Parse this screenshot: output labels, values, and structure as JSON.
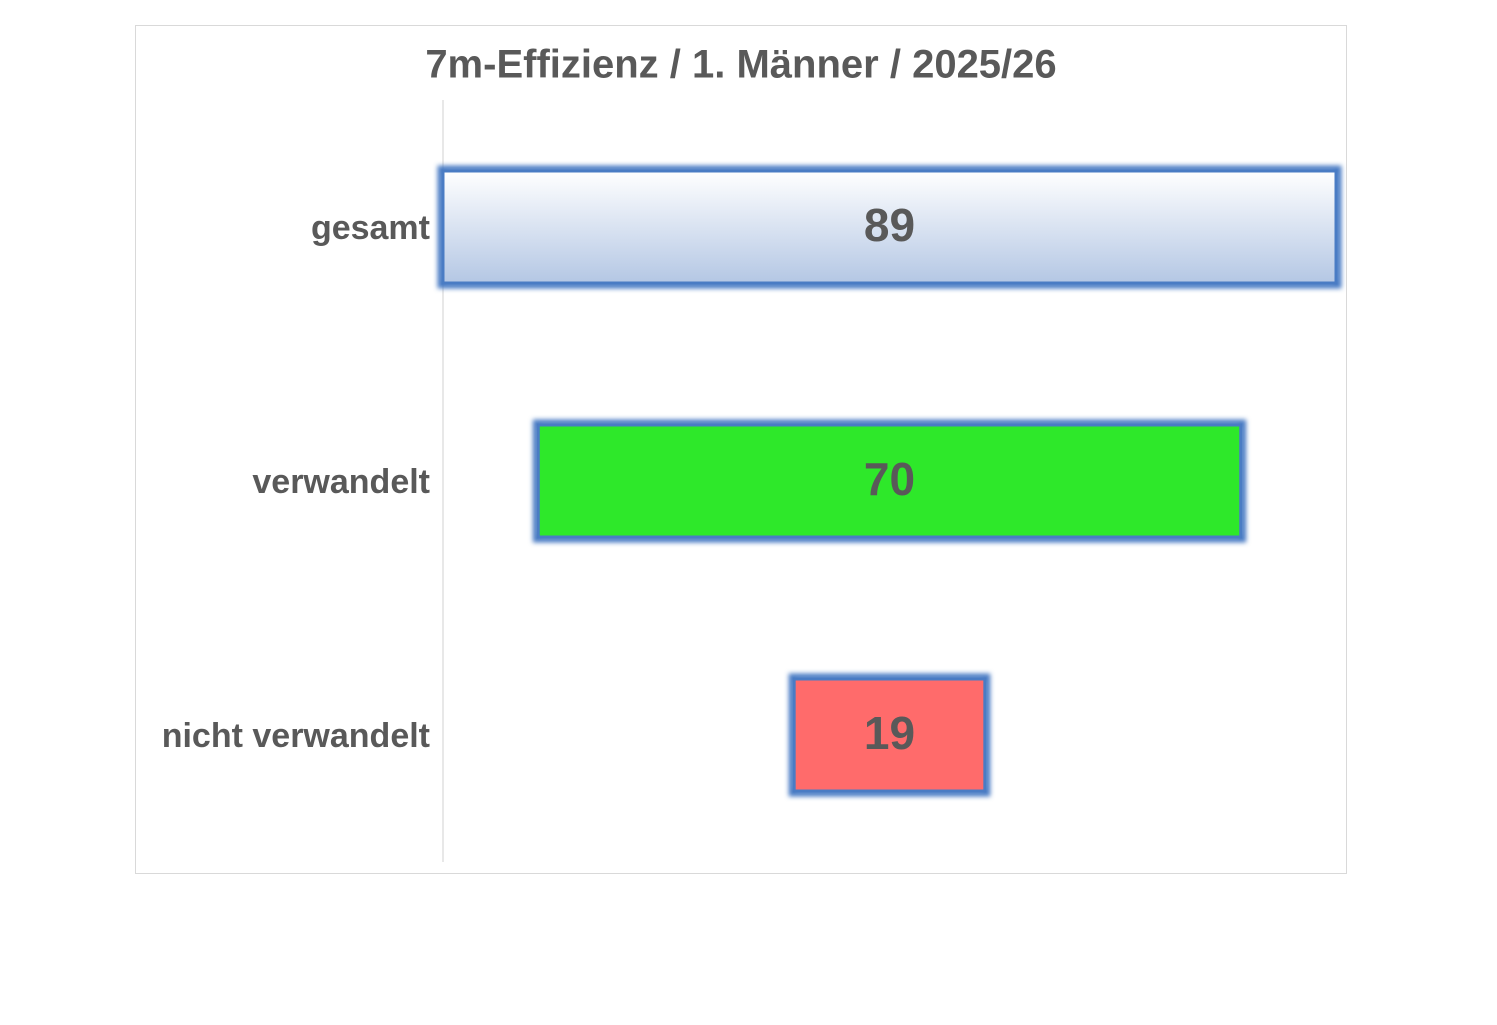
{
  "chart_data": {
    "type": "funnel",
    "title": "7m-Effizienz / 1. Männer / 2025/26",
    "categories": [
      "gesamt",
      "verwandelt",
      "nicht verwandelt"
    ],
    "values": [
      89,
      70,
      19
    ],
    "colors": [
      "#b4c7e4",
      "#2ee82a",
      "#ff6b6b"
    ],
    "border_color": "#4a7cc4"
  }
}
